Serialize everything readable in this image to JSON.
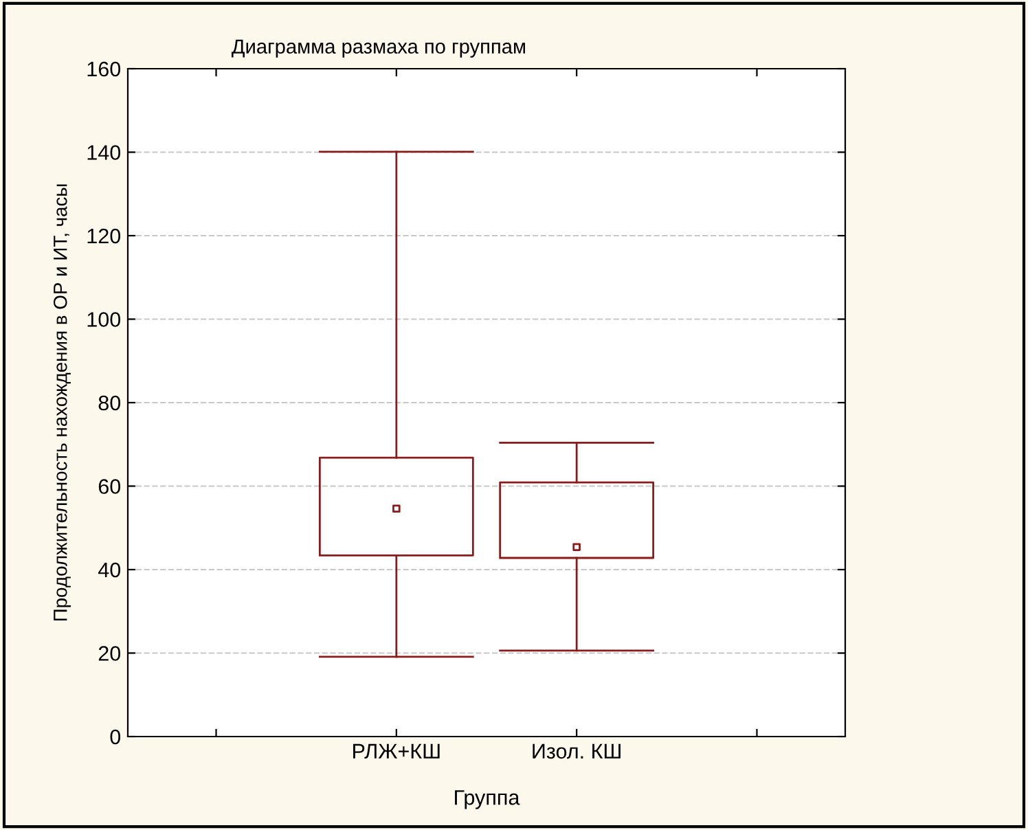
{
  "chart_data": {
    "type": "box",
    "title": "Диаграмма размаха по группам",
    "xlabel": "Группа",
    "ylabel": "Продолжительность нахождения в ОР и ИТ, часы",
    "categories": [
      "РЛЖ+КШ",
      "Изол. КШ"
    ],
    "boxes": [
      {
        "low": 19.1,
        "q1": 43.4,
        "median": 54.6,
        "q3": 66.8,
        "high": 140.1
      },
      {
        "low": 20.6,
        "q1": 42.8,
        "median": 45.4,
        "q3": 60.9,
        "high": 70.4
      }
    ],
    "color": "#8b1a1a",
    "ylim": [
      0,
      160
    ],
    "yticks": [
      0,
      20,
      40,
      60,
      80,
      100,
      120,
      140,
      160
    ],
    "grid": "y",
    "marker": "square"
  }
}
